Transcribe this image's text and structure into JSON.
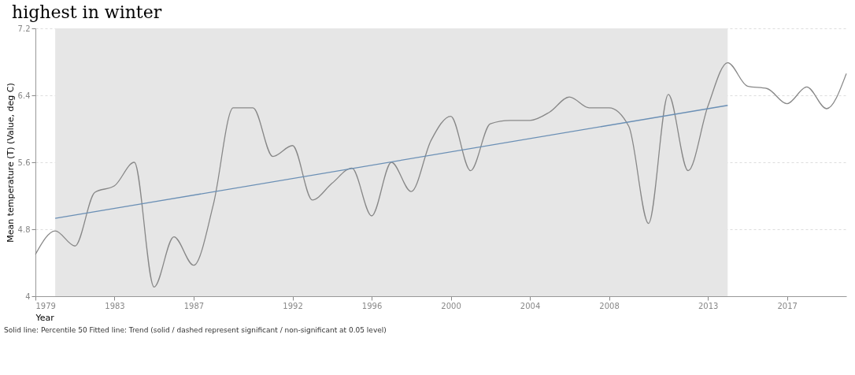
{
  "chart_data": {
    "type": "line",
    "ylabel": "Mean temperature (T) (Value, deg C)",
    "xlabel": "Year",
    "annotations": [
      "highest in winter",
      "Solid line: Percentile 50   Fitted line: Trend (solid / dashed represent significant / non-significant at 0.05 level)"
    ],
    "xlim": [
      1979,
      2020
    ],
    "xticks": [
      1979,
      1983,
      1987,
      1992,
      1996,
      2000,
      2004,
      2008,
      2013,
      2017
    ],
    "ylim": [
      4,
      7.2
    ],
    "yticks": [
      4,
      4.8,
      5.6,
      6.4,
      7.2
    ],
    "grid": "y",
    "line_style": "solid",
    "bands": [
      {
        "axis": "x",
        "from": 1980,
        "to": 2014,
        "color": "#e6e6e6"
      }
    ],
    "series": [
      {
        "color": "#888888",
        "x": [
          1979,
          1980,
          1981,
          1982,
          1983,
          1984,
          1985,
          1986,
          1987,
          1988,
          1989,
          1990,
          1991,
          1992,
          1993,
          1994,
          1995,
          1996,
          1997,
          1998,
          1999,
          2000,
          2001,
          2002,
          2003,
          2004,
          2005,
          2006,
          2007,
          2008,
          2009,
          2010,
          2011,
          2012,
          2013,
          2014,
          2015,
          2016,
          2017,
          2018,
          2019,
          2020
        ],
        "values": [
          4.5,
          4.78,
          4.6,
          5.24,
          5.32,
          5.6,
          4.11,
          4.71,
          4.37,
          5.1,
          6.25,
          6.25,
          5.67,
          5.8,
          5.15,
          5.35,
          5.53,
          4.96,
          5.6,
          5.25,
          5.86,
          6.15,
          5.5,
          6.06,
          6.1,
          6.1,
          6.2,
          6.38,
          6.25,
          6.25,
          6.03,
          4.87,
          6.41,
          5.5,
          6.27,
          6.79,
          6.51,
          6.48,
          6.3,
          6.5,
          6.24,
          6.66
        ]
      },
      {
        "color": "#6a8fb5",
        "x": [
          1980,
          2014
        ],
        "values": [
          4.93,
          6.28
        ]
      }
    ]
  }
}
